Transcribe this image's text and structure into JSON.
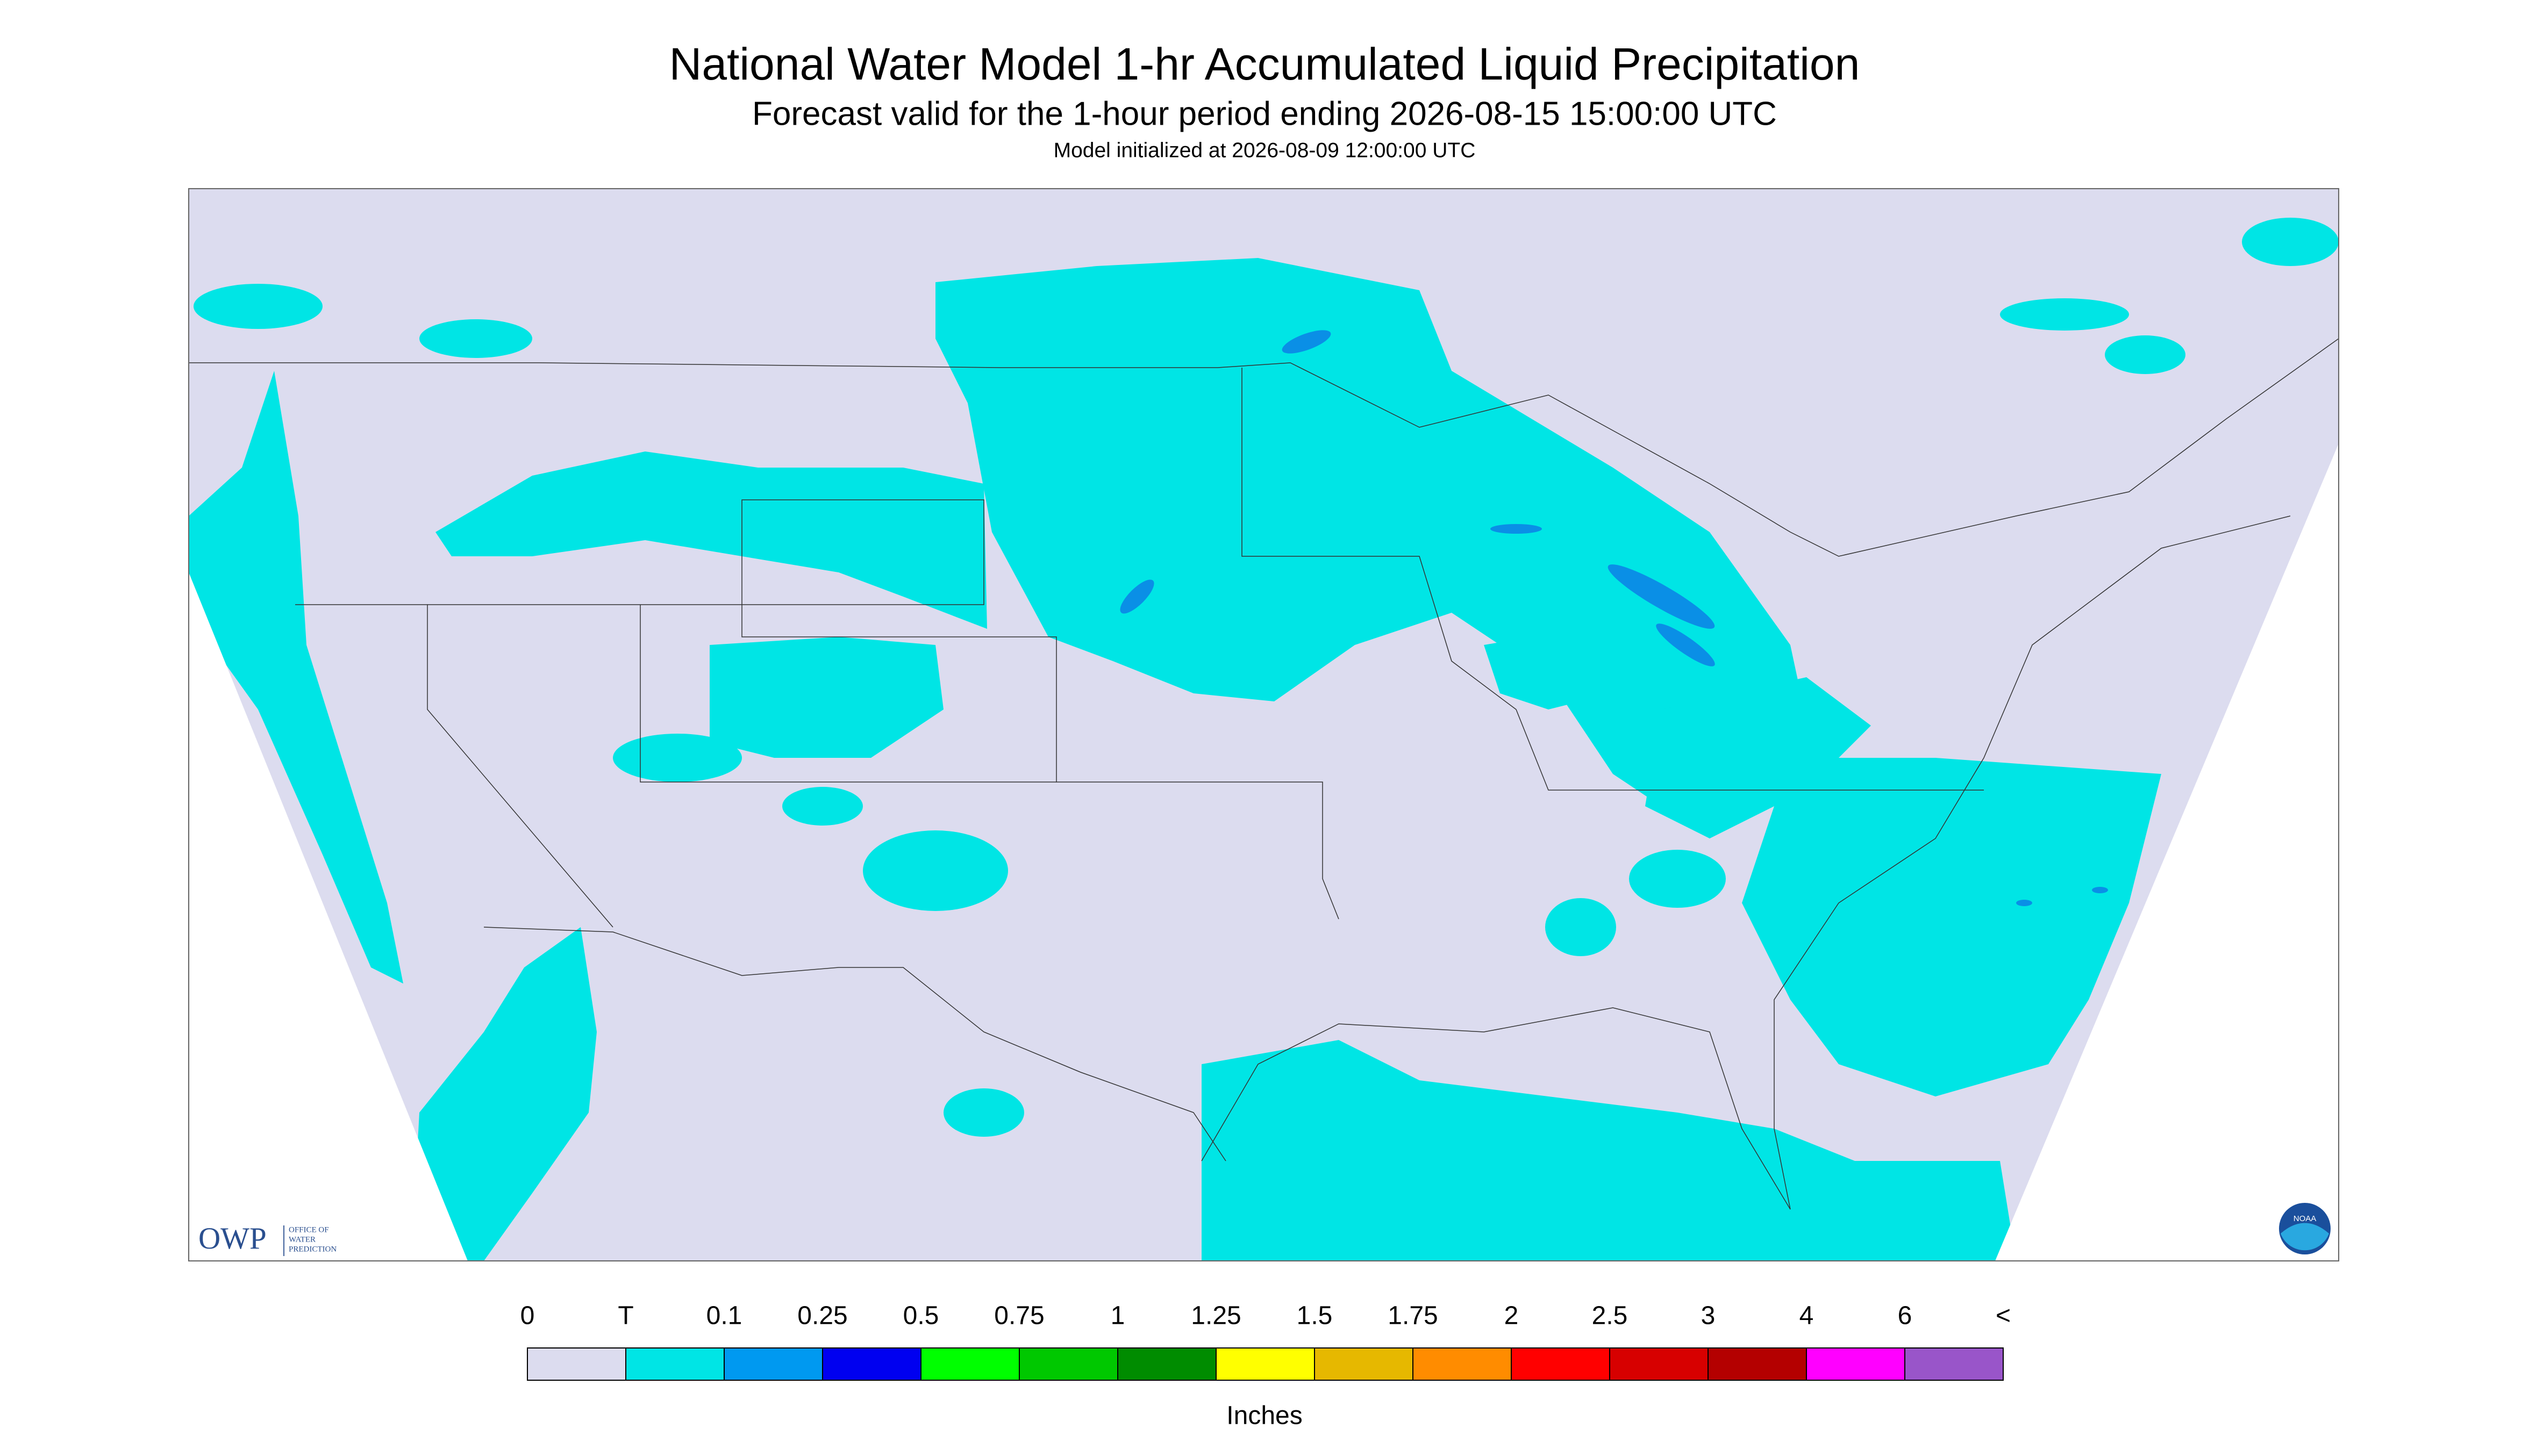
{
  "header": {
    "title": "National Water Model 1-hr Accumulated Liquid Precipitation",
    "subtitle": "Forecast valid for the 1-hour period ending 2026-08-15 15:00:00 UTC",
    "init": "Model initialized at 2026-08-09 12:00:00 UTC"
  },
  "legend": {
    "labels": [
      "0",
      "T",
      "0.1",
      "0.25",
      "0.5",
      "0.75",
      "1",
      "1.25",
      "1.5",
      "1.75",
      "2",
      "2.5",
      "3",
      "4",
      "6",
      "<"
    ],
    "colors": [
      "#dcdcef",
      "#00e5e5",
      "#0099f0",
      "#0000f0",
      "#00ff00",
      "#00c800",
      "#008c00",
      "#ffff00",
      "#e6b800",
      "#ff8c00",
      "#ff0000",
      "#d70000",
      "#b40000",
      "#ff00ff",
      "#9955c9"
    ],
    "unit": "Inches"
  },
  "logos": {
    "owp": "OWP",
    "owp_lines": [
      "OFFICE OF",
      "WATER",
      "PREDICTION"
    ],
    "noaa": "NOAA"
  }
}
